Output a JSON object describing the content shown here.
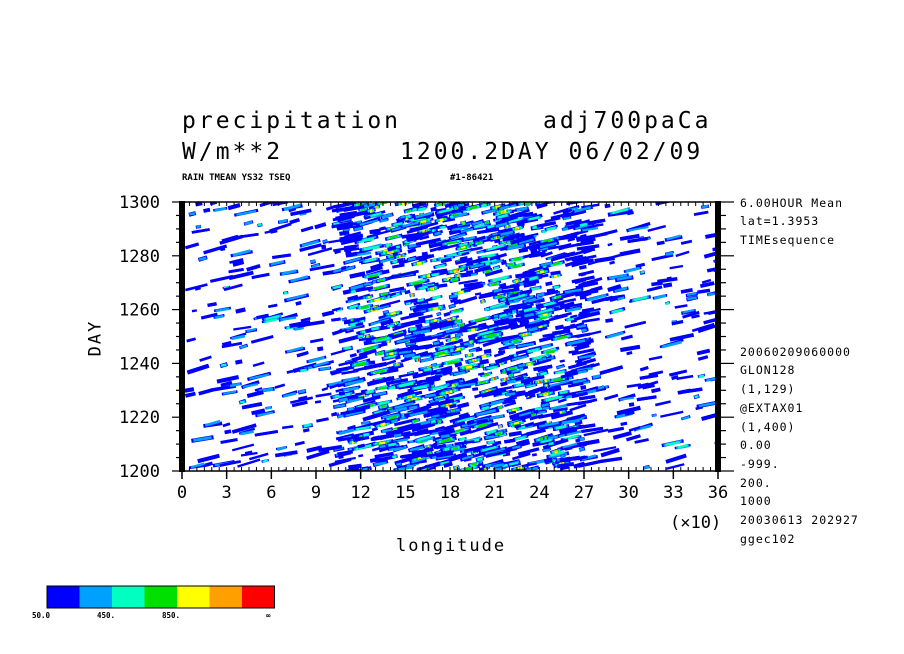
{
  "header": {
    "variable": "precipitation",
    "experiment": "adj700paCa",
    "units": "W/m**2",
    "time_info": "1200.2DAY 06/02/09",
    "subtitle_left": "RAIN TMEAN YS32 TSEQ",
    "subtitle_right": "#1-86421"
  },
  "side_info": {
    "top": [
      "6.00HOUR Mean",
      "lat=1.3953",
      "TIMEsequence"
    ],
    "bottom": [
      "20060209060000",
      "GLON128",
      "(1,129)",
      "@EXTAX01",
      "(1,400)",
      "0.00",
      "-999.",
      "200.",
      "1000",
      "20030613 202927",
      "ggec102"
    ]
  },
  "colorbar": {
    "colors": [
      "#0000ff",
      "#00a0ff",
      "#00ffc0",
      "#00e000",
      "#ffff00",
      "#ffa000",
      "#ff0000"
    ],
    "labels": [
      "50.0",
      "450.",
      "850.",
      "∞"
    ]
  },
  "chart_data": {
    "type": "heatmap",
    "xlabel": "longitude",
    "ylabel": "DAY",
    "x_multiplier_label": "(×10)",
    "xlim": [
      0,
      36
    ],
    "ylim": [
      1200,
      1300
    ],
    "x_ticks": [
      "0",
      "3",
      "6",
      "9",
      "12",
      "15",
      "18",
      "21",
      "24",
      "27",
      "30",
      "33",
      "36"
    ],
    "y_ticks": [
      "1200",
      "1220",
      "1240",
      "1260",
      "1280",
      "1300"
    ],
    "levels": [
      50,
      250,
      450,
      650,
      850,
      1050
    ],
    "background": "#ffffff"
  }
}
